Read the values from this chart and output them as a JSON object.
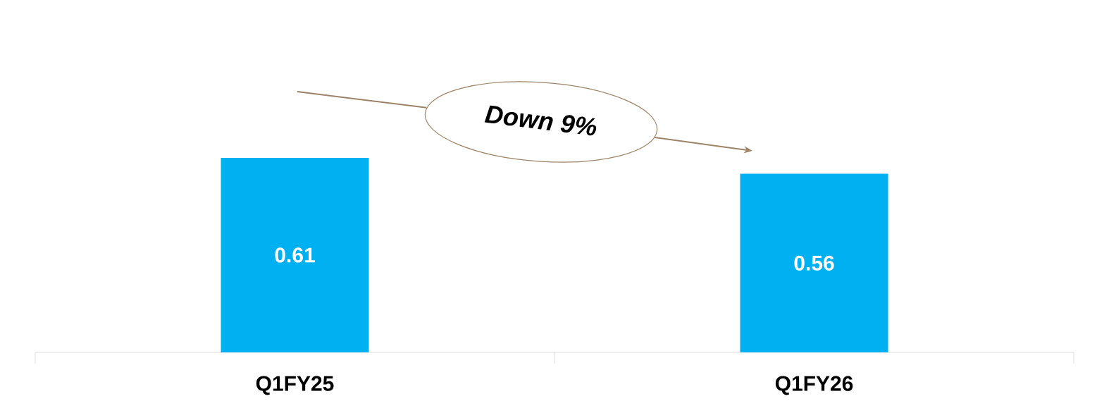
{
  "chart_data": {
    "type": "bar",
    "categories": [
      "Q1FY25",
      "Q1FY26"
    ],
    "values": [
      0.61,
      0.56
    ],
    "color": "#00b0f0",
    "data_labels": true,
    "annotations": [
      "Down 9%"
    ]
  }
}
